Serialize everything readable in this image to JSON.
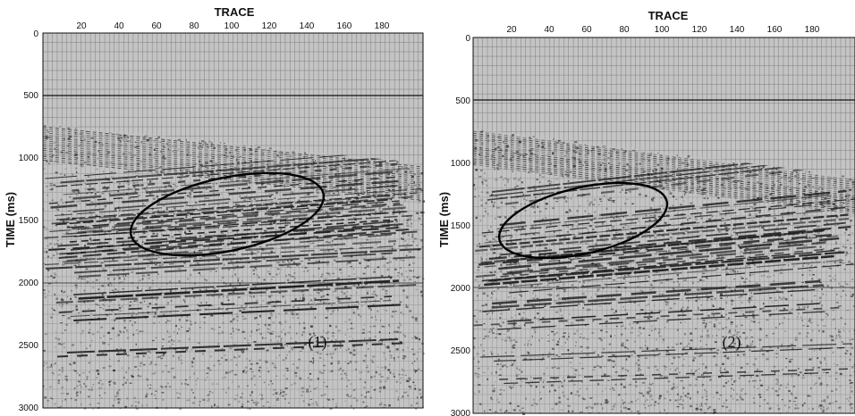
{
  "panels": [
    {
      "x_axis_title": "TRACE",
      "y_axis_title": "TIME (ms)",
      "x_ticks": [
        "20",
        "40",
        "60",
        "80",
        "100",
        "120",
        "140",
        "160",
        "180"
      ],
      "y_ticks": [
        "0",
        "500",
        "1000",
        "1500",
        "2000",
        "2500",
        "3000"
      ],
      "label": "(1)"
    },
    {
      "x_axis_title": "TRACE",
      "y_axis_title": "TIME (ms)",
      "x_ticks": [
        "20",
        "40",
        "60",
        "80",
        "100",
        "120",
        "140",
        "160",
        "180"
      ],
      "y_ticks": [
        "0",
        "500",
        "1000",
        "1500",
        "2000",
        "2500",
        "3000"
      ],
      "label": "(2)"
    }
  ],
  "colors": {
    "background": "#c4c4c4",
    "grid": "#8a8a8a",
    "ink": "#111111"
  }
}
